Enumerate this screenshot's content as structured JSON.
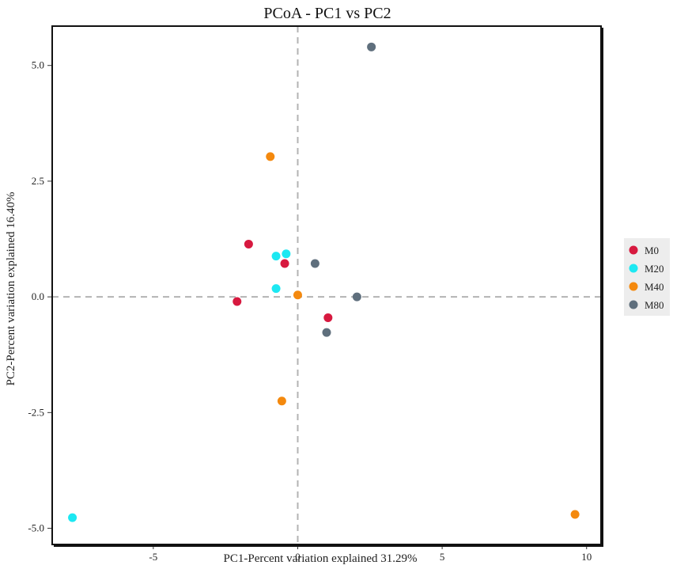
{
  "chart_data": {
    "type": "scatter",
    "title": "PCoA - PC1 vs PC2",
    "xlabel": "PC1-Percent variation explained 31.29%",
    "ylabel": "PC2-Percent variation explained 16.40%",
    "xlim": [
      -8.5,
      10.5
    ],
    "ylim": [
      -5.35,
      5.85
    ],
    "xticks": [
      -5,
      0,
      5,
      10
    ],
    "xtick_labels": [
      "-5",
      "0",
      "5",
      "10"
    ],
    "yticks": [
      -5,
      -2.5,
      0,
      2.5,
      5
    ],
    "ytick_labels": [
      "-5.0",
      "-2.5",
      "0.0",
      "2.5",
      "5.0"
    ],
    "grid": false,
    "reference_lines": {
      "x": 0,
      "y": 0,
      "style": "dashed"
    },
    "legend_position": "right",
    "series": [
      {
        "name": "M0",
        "color": "#d7193f",
        "points": [
          [
            -1.7,
            1.14
          ],
          [
            -0.45,
            0.72
          ],
          [
            -2.1,
            -0.1
          ],
          [
            1.05,
            -0.45
          ]
        ]
      },
      {
        "name": "M20",
        "color": "#1de8f2",
        "points": [
          [
            -7.8,
            -4.77
          ],
          [
            -0.75,
            0.88
          ],
          [
            -0.4,
            0.93
          ],
          [
            -0.75,
            0.18
          ]
        ]
      },
      {
        "name": "M40",
        "color": "#f4890e",
        "points": [
          [
            -0.95,
            3.03
          ],
          [
            0.0,
            0.04
          ],
          [
            -0.55,
            -2.25
          ],
          [
            9.6,
            -4.7
          ]
        ]
      },
      {
        "name": "M80",
        "color": "#5f6f7d",
        "points": [
          [
            2.55,
            5.4
          ],
          [
            0.6,
            0.72
          ],
          [
            2.05,
            0.0
          ],
          [
            1.0,
            -0.77
          ]
        ]
      }
    ]
  }
}
